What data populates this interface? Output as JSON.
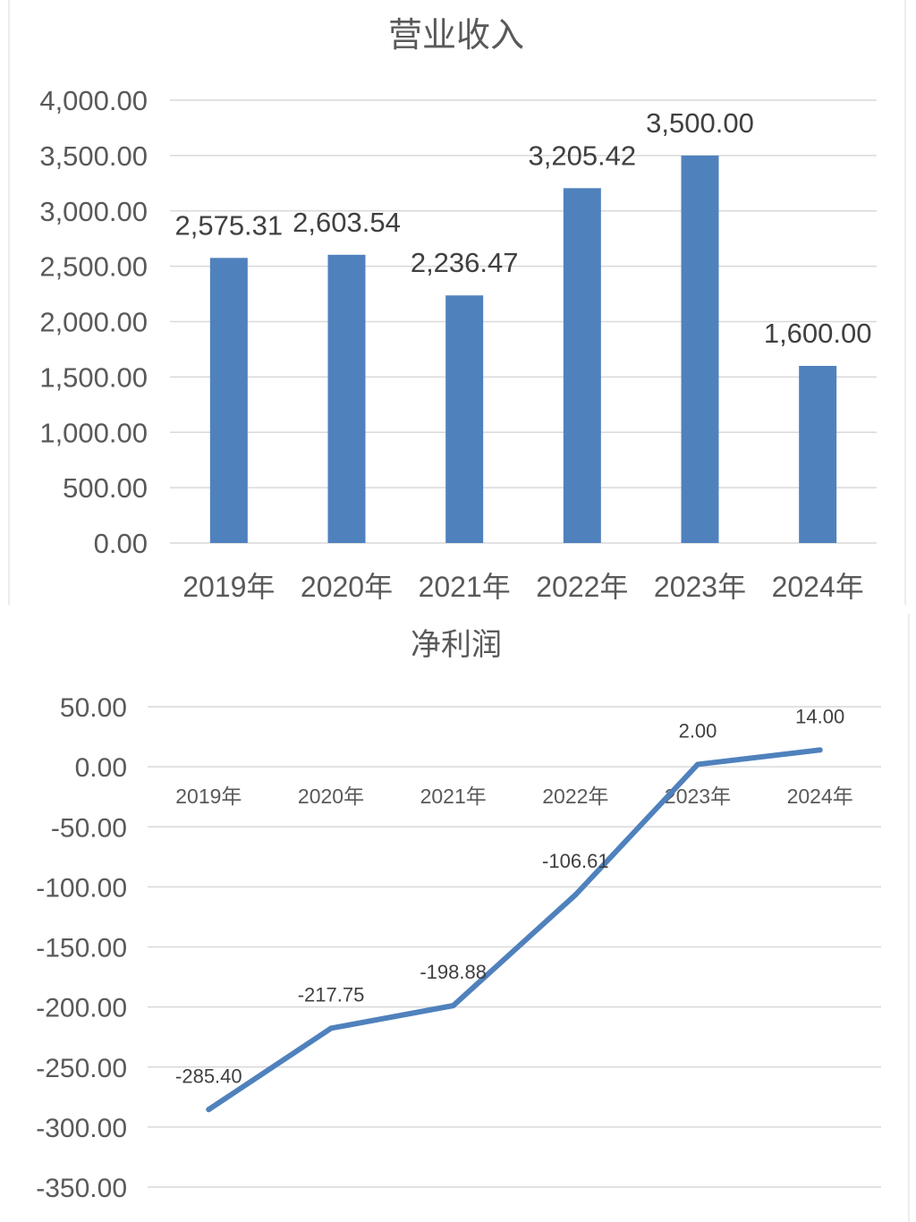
{
  "colors": {
    "series": "#4f81bd",
    "grid": "#d9d9d9",
    "text": "#595959"
  },
  "chart_data": [
    {
      "type": "bar",
      "title": "营业收入",
      "categories": [
        "2019年",
        "2020年",
        "2021年",
        "2022年",
        "2023年",
        "2024年"
      ],
      "values": [
        2575.31,
        2603.54,
        2236.47,
        3205.42,
        3500.0,
        1600.0
      ],
      "data_labels": [
        "2,575.31",
        "2,603.54",
        "2,236.47",
        "3,205.42",
        "3,500.00",
        "1,600.00"
      ],
      "yticks": [
        "0.00",
        "500.00",
        "1,000.00",
        "1,500.00",
        "2,000.00",
        "2,500.00",
        "3,000.00",
        "3,500.00",
        "4,000.00"
      ],
      "ylim": [
        0,
        4000
      ],
      "xlabel": "",
      "ylabel": "",
      "grid": true,
      "legend": "none"
    },
    {
      "type": "line",
      "title": "净利润",
      "categories": [
        "2019年",
        "2020年",
        "2021年",
        "2022年",
        "2023年",
        "2024年"
      ],
      "values": [
        -285.4,
        -217.75,
        -198.88,
        -106.61,
        2.0,
        14.0
      ],
      "data_labels": [
        "-285.40",
        "-217.75",
        "-198.88",
        "-106.61",
        "2.00",
        "14.00"
      ],
      "yticks": [
        "-350.00",
        "-300.00",
        "-250.00",
        "-200.00",
        "-150.00",
        "-100.00",
        "-50.00",
        "0.00",
        "50.00"
      ],
      "ylim": [
        -350,
        50
      ],
      "xlabel": "",
      "ylabel": "",
      "grid": true,
      "legend": "none"
    }
  ]
}
